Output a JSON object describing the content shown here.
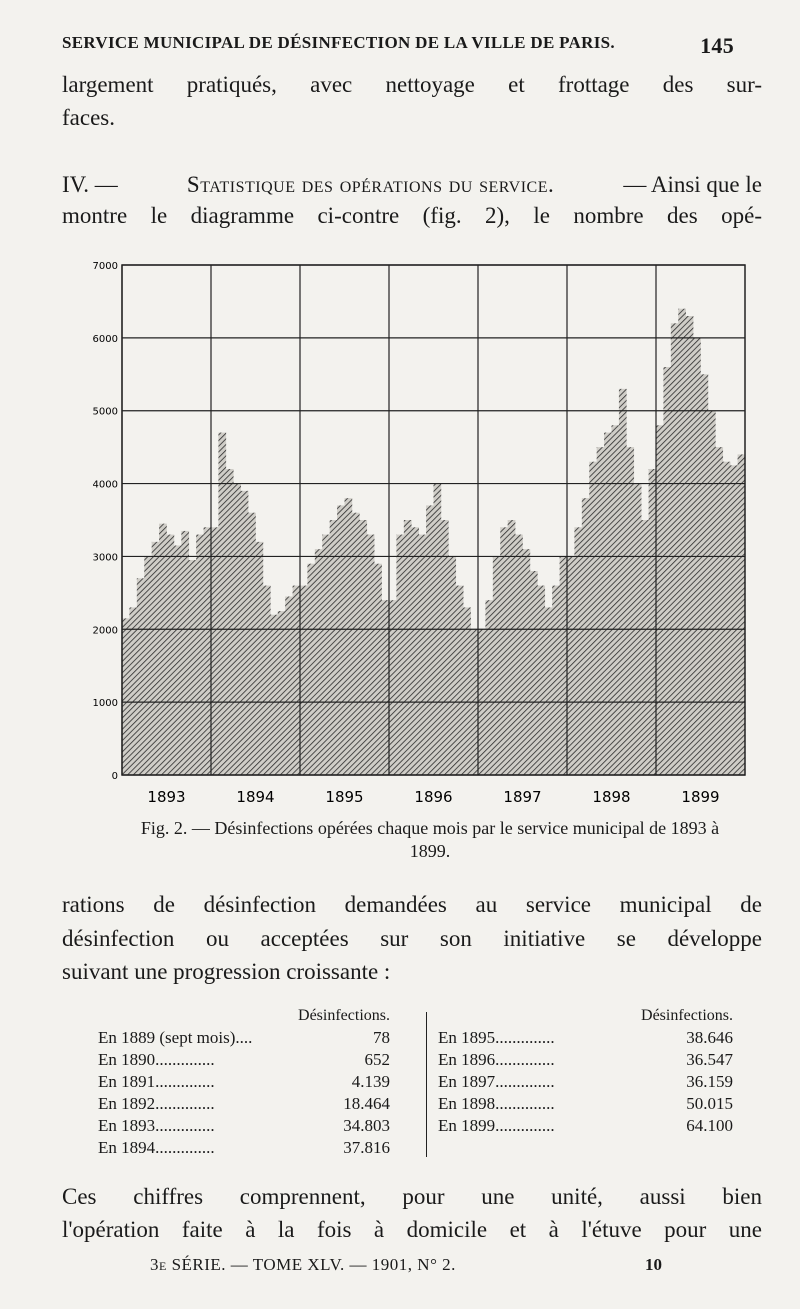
{
  "header": {
    "title": "SERVICE MUNICIPAL DE DÉSINFECTION DE LA VILLE DE PARIS.",
    "page": "145"
  },
  "paragraph_1": [
    "largement pratiqués, avec nettoyage et frottage des sur-",
    "faces."
  ],
  "section": {
    "number": "IV. —",
    "title": "Statistique des opérations du service.",
    "line_1_rest": "— Ainsi que le",
    "line_2": "montre le diagramme ci-contre (fig. 2), le nombre des opé-"
  },
  "figure": {
    "type": "bar",
    "caption": "Fig. 2. — Désinfections opérées chaque mois par le service municipal de 1893 à 1899.",
    "years": [
      "1893",
      "1894",
      "1895",
      "1896",
      "1897",
      "1898",
      "1899"
    ],
    "ylim": [
      0,
      7000
    ],
    "yticks": [
      0,
      1000,
      2000,
      3000,
      4000,
      5000,
      6000,
      7000
    ],
    "grid": true,
    "color": "#2a2a2a",
    "values": [
      2150,
      2300,
      2700,
      3000,
      3200,
      3450,
      3300,
      3150,
      3350,
      2950,
      3300,
      3400,
      3400,
      4700,
      4200,
      4000,
      3900,
      3600,
      3200,
      2600,
      2200,
      2250,
      2450,
      2600,
      2600,
      2900,
      3100,
      3300,
      3500,
      3700,
      3800,
      3600,
      3500,
      3300,
      2900,
      2400,
      2400,
      3300,
      3500,
      3400,
      3300,
      3700,
      4000,
      3500,
      3000,
      2600,
      2300,
      2000,
      2000,
      2400,
      3000,
      3400,
      3500,
      3300,
      3100,
      2800,
      2600,
      2300,
      2600,
      3000,
      3000,
      3400,
      3800,
      4300,
      4500,
      4700,
      4800,
      5300,
      4500,
      4000,
      3500,
      4200,
      4800,
      5600,
      6200,
      6400,
      6300,
      6000,
      5500,
      5000,
      4500,
      4300,
      4250,
      4400
    ]
  },
  "paragraph_2": [
    "rations de désinfection demandées au service municipal de",
    "désinfection ou acceptées sur son initiative se développe",
    "suivant une progression croissante :"
  ],
  "table": {
    "header": "Désinfections.",
    "left": [
      [
        "En 1889 (sept mois)....",
        "78"
      ],
      [
        "En 1890..............",
        "652"
      ],
      [
        "En 1891..............",
        "4.139"
      ],
      [
        "En 1892..............",
        "18.464"
      ],
      [
        "En 1893..............",
        "34.803"
      ],
      [
        "En 1894..............",
        "37.816"
      ]
    ],
    "right": [
      [
        "En 1895..............",
        "38.646"
      ],
      [
        "En 1896..............",
        "36.547"
      ],
      [
        "En 1897..............",
        "36.159"
      ],
      [
        "En 1898..............",
        "50.015"
      ],
      [
        "En 1899..............",
        "64.100"
      ]
    ]
  },
  "paragraph_3": [
    "Ces chiffres comprennent, pour une unité, aussi bien",
    "l'opération faite à la fois à domicile et à l'étuve pour une"
  ],
  "footer": {
    "series": "3e SÉRIE. — TOME XLV. — 1901, N° 2.",
    "sheet": "10"
  }
}
